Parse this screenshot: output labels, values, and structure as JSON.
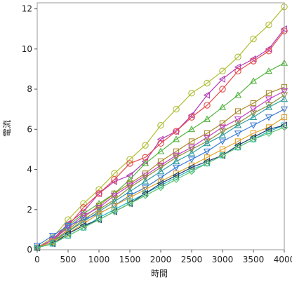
{
  "chart_data": {
    "type": "line",
    "xlabel": "時間",
    "ylabel": "電流",
    "xlim": [
      0,
      4000
    ],
    "ylim": [
      0,
      12.3
    ],
    "x_ticks": [
      0,
      500,
      1000,
      1500,
      2000,
      2500,
      3000,
      3500,
      4000
    ],
    "y_ticks": [
      0,
      2,
      4,
      6,
      8,
      10,
      12
    ],
    "grid": false,
    "legend": "none",
    "x": [
      0,
      250,
      500,
      750,
      1000,
      1250,
      1500,
      1750,
      2000,
      2250,
      2500,
      2750,
      3000,
      3250,
      3500,
      3750,
      4000
    ],
    "series": [
      {
        "color": "#b0bd32",
        "marker": "circle",
        "values": [
          0.1,
          0.6,
          1.5,
          2.3,
          3.0,
          3.8,
          4.5,
          5.2,
          6.2,
          7.0,
          7.8,
          8.3,
          8.9,
          9.6,
          10.5,
          11.2,
          12.1
        ]
      },
      {
        "color": "#b13ab7",
        "marker": "triangle-left",
        "values": [
          0.1,
          0.5,
          1.3,
          1.9,
          2.8,
          3.4,
          3.7,
          4.4,
          5.5,
          5.9,
          6.7,
          7.7,
          8.5,
          9.1,
          9.5,
          10.0,
          11.0
        ]
      },
      {
        "color": "#e8494a",
        "marker": "circle",
        "values": [
          0.1,
          0.5,
          1.2,
          2.1,
          2.8,
          3.5,
          4.3,
          4.6,
          5.3,
          5.9,
          6.6,
          7.2,
          8.0,
          8.9,
          9.4,
          9.9,
          10.9
        ]
      },
      {
        "color": "#52b43e",
        "marker": "triangle-up",
        "values": [
          0.1,
          0.4,
          1.2,
          1.8,
          2.3,
          2.8,
          3.5,
          4.3,
          4.9,
          5.5,
          6.0,
          6.5,
          7.1,
          7.7,
          8.4,
          8.9,
          9.3
        ]
      },
      {
        "color": "#a8892a",
        "marker": "square",
        "values": [
          0.1,
          0.4,
          1.0,
          1.6,
          2.2,
          2.8,
          3.3,
          3.8,
          4.4,
          4.9,
          5.4,
          5.8,
          6.3,
          6.9,
          7.3,
          7.8,
          8.1
        ]
      },
      {
        "color": "#c43ec9",
        "marker": "triangle-down",
        "values": [
          0.1,
          0.5,
          1.1,
          1.7,
          2.1,
          2.7,
          3.2,
          3.7,
          4.2,
          4.7,
          5.1,
          5.6,
          6.1,
          6.5,
          7.0,
          7.5,
          7.9
        ]
      },
      {
        "color": "#8e8e3a",
        "marker": "triangle-down",
        "values": [
          0.1,
          0.4,
          0.9,
          1.5,
          2.0,
          2.5,
          3.1,
          3.6,
          4.1,
          4.6,
          5.0,
          5.4,
          5.9,
          6.3,
          6.8,
          7.2,
          7.7
        ]
      },
      {
        "color": "#2c9ea2",
        "marker": "triangle-up",
        "values": [
          0.1,
          0.4,
          0.9,
          1.4,
          1.9,
          2.4,
          2.9,
          3.4,
          3.9,
          4.4,
          4.8,
          5.3,
          5.7,
          6.2,
          6.6,
          7.1,
          7.5
        ]
      },
      {
        "color": "#3e7dd6",
        "marker": "triangle-down",
        "values": [
          0.2,
          0.7,
          1.2,
          1.5,
          1.8,
          2.2,
          2.7,
          3.1,
          3.6,
          4.1,
          4.5,
          4.9,
          5.4,
          5.8,
          6.2,
          6.6,
          7.0
        ]
      },
      {
        "color": "#e0a126",
        "marker": "square",
        "values": [
          0.1,
          0.4,
          0.8,
          1.3,
          1.8,
          2.2,
          2.6,
          3.0,
          3.4,
          3.8,
          4.2,
          4.6,
          5.0,
          5.4,
          5.8,
          6.1,
          6.6
        ]
      },
      {
        "color": "#23b9c9",
        "marker": "square",
        "values": [
          0.1,
          0.3,
          0.7,
          1.1,
          1.6,
          2.0,
          2.4,
          2.8,
          3.2,
          3.6,
          4.0,
          4.3,
          4.7,
          5.1,
          5.5,
          5.9,
          6.2
        ]
      },
      {
        "color": "#1f3b73",
        "marker": "triangle-left",
        "values": [
          0.1,
          0.3,
          0.8,
          1.2,
          1.5,
          1.9,
          2.3,
          2.8,
          3.3,
          3.7,
          4.1,
          4.4,
          4.7,
          5.2,
          5.6,
          6.0,
          6.2
        ]
      },
      {
        "color": "#5ec46a",
        "marker": "diamond",
        "values": [
          0.1,
          0.3,
          0.7,
          1.1,
          1.5,
          1.9,
          2.3,
          2.7,
          3.1,
          3.5,
          3.9,
          4.3,
          4.7,
          5.1,
          5.5,
          5.8,
          6.1
        ]
      }
    ]
  }
}
